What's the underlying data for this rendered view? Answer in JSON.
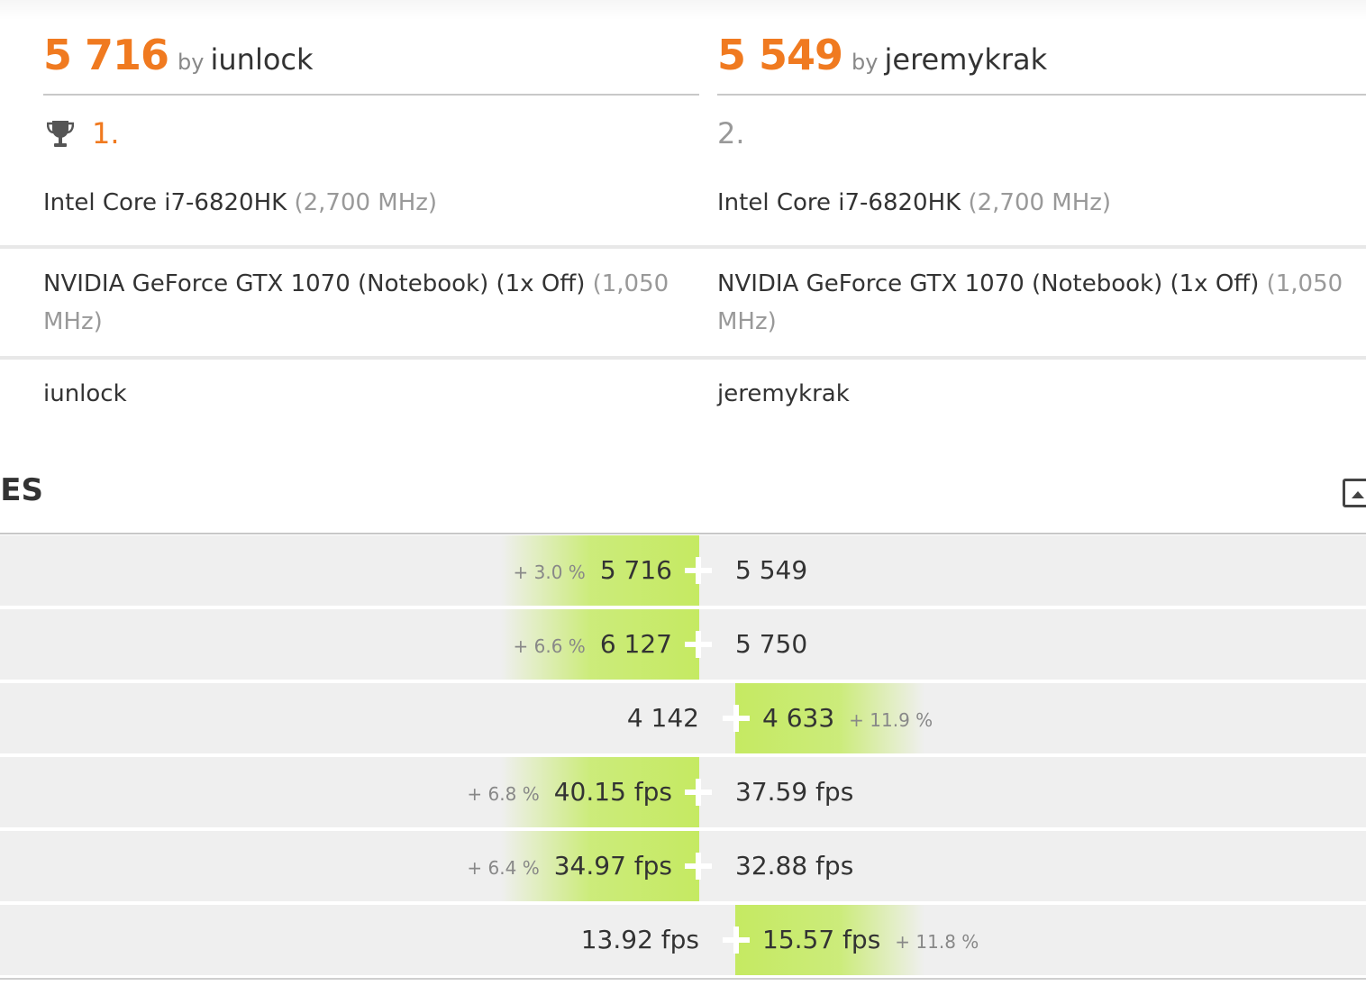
{
  "left": {
    "score": "5 716",
    "by": "by",
    "user": "iunlock",
    "rank": "1.",
    "cpu": "Intel Core i7-6820HK",
    "cpu_freq": "(2,700 MHz)",
    "gpu": "NVIDIA GeForce GTX 1070 (Notebook) (1x Off)",
    "gpu_freq_1": "(1,050",
    "gpu_freq_2": "MHz)",
    "owner": "iunlock"
  },
  "right": {
    "score": "5 549",
    "by": "by",
    "user": "jeremykrak",
    "rank": "2.",
    "cpu": "Intel Core i7-6820HK",
    "cpu_freq": "(2,700 MHz)",
    "gpu": "NVIDIA GeForce GTX 1070 (Notebook) (1x Off)",
    "gpu_freq_1": "(1,050",
    "gpu_freq_2": "MHz)",
    "owner": "jeremykrak"
  },
  "section": {
    "title": "RES"
  },
  "rows": [
    {
      "left": "5 716",
      "right": "5 549",
      "diff": "+ 3.0 %",
      "winner": "left"
    },
    {
      "left": "6 127",
      "right": "5 750",
      "diff": "+ 6.6 %",
      "winner": "left"
    },
    {
      "left": "4 142",
      "right": "4 633",
      "diff": "+ 11.9 %",
      "winner": "right"
    },
    {
      "left": "40.15 fps",
      "right": "37.59 fps",
      "diff": "+ 6.8 %",
      "winner": "left"
    },
    {
      "left": "34.97 fps",
      "right": "32.88 fps",
      "diff": "+ 6.4 %",
      "winner": "left"
    },
    {
      "left": "13.92 fps",
      "right": "15.57 fps",
      "diff": "+ 11.8 %",
      "winner": "right"
    }
  ],
  "colors": {
    "accent": "#f07a20",
    "highlight": "#c5ea62",
    "row_bg": "#efefef"
  },
  "icons": {
    "trophy": "trophy-icon",
    "collapse": "collapse-icon"
  }
}
